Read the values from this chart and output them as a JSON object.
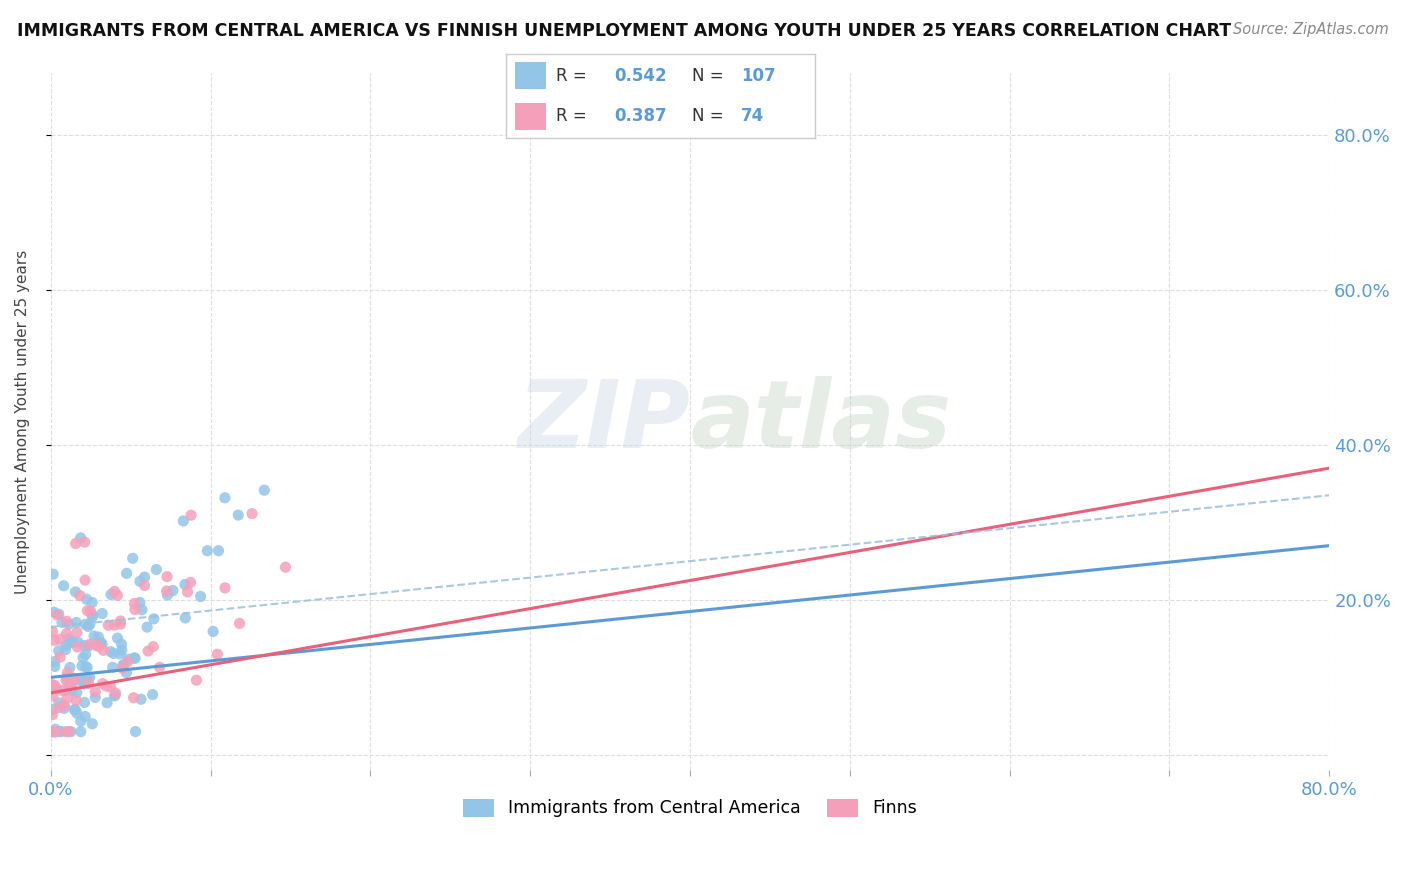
{
  "title": "IMMIGRANTS FROM CENTRAL AMERICA VS FINNISH UNEMPLOYMENT AMONG YOUTH UNDER 25 YEARS CORRELATION CHART",
  "source": "Source: ZipAtlas.com",
  "ylabel": "Unemployment Among Youth under 25 years",
  "xlim": [
    0.0,
    0.8
  ],
  "ylim": [
    -0.02,
    0.88
  ],
  "blue_R": 0.542,
  "blue_N": 107,
  "pink_R": 0.387,
  "pink_N": 74,
  "blue_color": "#92C5E8",
  "pink_color": "#F4A0BA",
  "blue_line_color": "#5B9BD5",
  "pink_line_color": "#E8607A",
  "blue_dash_color": "#9BBFD8",
  "legend_label_blue": "Immigrants from Central America",
  "legend_label_pink": "Finns",
  "watermark": "ZIPatlas",
  "grid_color": "#DDDDDD",
  "tick_color": "#5B9BD5"
}
